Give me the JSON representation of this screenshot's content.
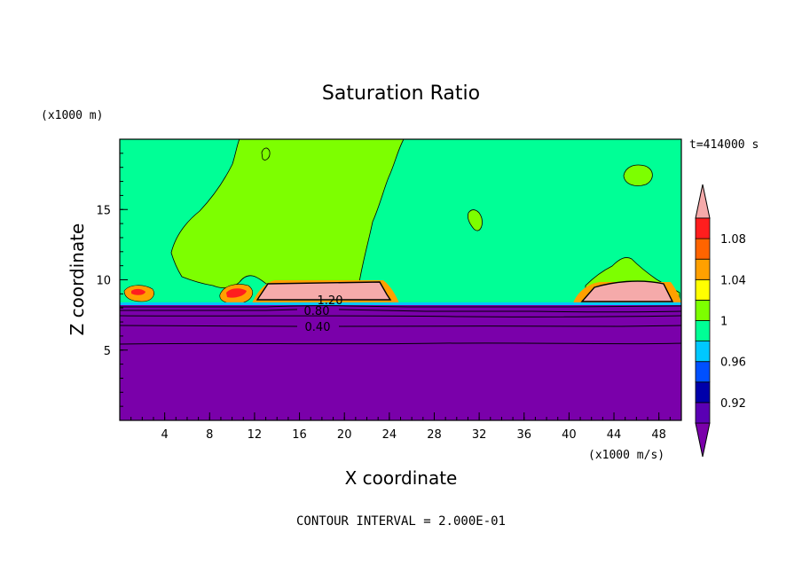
{
  "chart_data": {
    "type": "heatmap",
    "title": "Saturation Ratio",
    "xlabel": "X coordinate",
    "ylabel": "Z coordinate",
    "x_unit": "(x1000 m/s)",
    "y_unit": "(x1000 m)",
    "time_label": "t=414000 s",
    "footer": "CONTOUR INTERVAL = 2.000E-01",
    "xlim": [
      0,
      50
    ],
    "ylim": [
      0,
      20
    ],
    "x_ticks": [
      "4",
      "8",
      "12",
      "16",
      "20",
      "24",
      "28",
      "32",
      "36",
      "40",
      "44",
      "48"
    ],
    "y_ticks": [
      "5",
      "10",
      "15"
    ],
    "contour_labels": [
      "1.20",
      "0.80",
      "0.40"
    ],
    "colorbar": {
      "tick_labels": [
        "0.92",
        "0.96",
        "1",
        "1.04",
        "1.08"
      ],
      "levels": [
        {
          "range": "< 0.90",
          "color": "#7a00aa"
        },
        {
          "range": "0.90-0.92",
          "color": "#5a00b4"
        },
        {
          "range": "0.92-0.94",
          "color": "#0000aa"
        },
        {
          "range": "0.94-0.96",
          "color": "#0050ff"
        },
        {
          "range": "0.96-0.98",
          "color": "#00c8ff"
        },
        {
          "range": "0.98-1.00",
          "color": "#00ff96"
        },
        {
          "range": "1.00-1.02",
          "color": "#7dff00"
        },
        {
          "range": "1.02-1.04",
          "color": "#ffff00"
        },
        {
          "range": "1.04-1.06",
          "color": "#ffa000"
        },
        {
          "range": "1.06-1.08",
          "color": "#ff6400"
        },
        {
          "range": "1.08-1.10",
          "color": "#ff1e1e"
        },
        {
          "range": "> 1.10",
          "color": "#f5aaaa"
        }
      ]
    }
  }
}
